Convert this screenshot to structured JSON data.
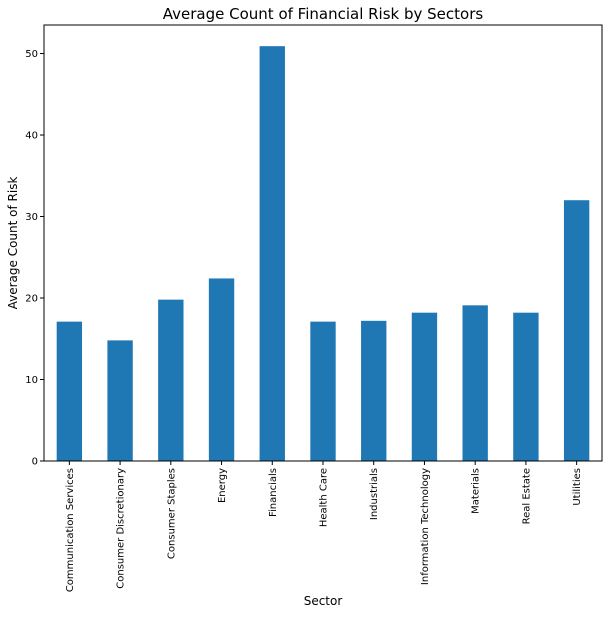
{
  "chart_data": {
    "type": "bar",
    "title": "Average Count of Financial Risk by Sectors",
    "xlabel": "Sector",
    "ylabel": "Average Count of Risk",
    "categories": [
      "Communication Services",
      "Consumer Discretionary",
      "Consumer Staples",
      "Energy",
      "Financials",
      "Health Care",
      "Industrials",
      "Information Technology",
      "Materials",
      "Real Estate",
      "Utilities"
    ],
    "values": [
      17.1,
      14.8,
      19.8,
      22.4,
      50.9,
      17.1,
      17.2,
      18.2,
      19.1,
      18.2,
      32.0
    ],
    "ylim": [
      0,
      53.5
    ],
    "yticks": [
      0,
      10,
      20,
      30,
      40,
      50
    ],
    "grid": false,
    "legend": "none",
    "colors": {
      "bar": "#1f77b4"
    }
  }
}
